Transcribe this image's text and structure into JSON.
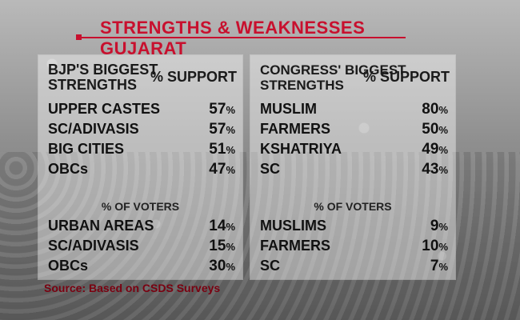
{
  "title": "STRENGTHS & WEAKNESSES GUJARAT",
  "colors": {
    "accent": "#c8102e",
    "source": "#7a0010"
  },
  "left": {
    "header": "BJP's BIGGEST\nSTRENGTHS",
    "support_label": "% SUPPORT",
    "support_rows": [
      {
        "label": "UPPER CASTES",
        "value": "57",
        "unit": "%"
      },
      {
        "label": "SC/ADIVASIS",
        "value": "57",
        "unit": "%"
      },
      {
        "label": "BIG CITIES",
        "value": "51",
        "unit": "%"
      },
      {
        "label": "OBCs",
        "value": "47",
        "unit": "%"
      }
    ],
    "voters_label": "% OF VOTERS",
    "voters_rows": [
      {
        "label": "URBAN AREAS",
        "value": "14",
        "unit": "%"
      },
      {
        "label": "SC/ADIVASIS",
        "value": "15",
        "unit": "%"
      },
      {
        "label": "OBCs",
        "value": "30",
        "unit": "%"
      }
    ]
  },
  "right": {
    "header": "CONGRESS' BIGGEST\nSTRENGTHS",
    "support_label": "% SUPPORT",
    "support_rows": [
      {
        "label": "MUSLIM",
        "value": "80",
        "unit": "%"
      },
      {
        "label": "FARMERS",
        "value": "50",
        "unit": "%"
      },
      {
        "label": "KSHATRIYA",
        "value": "49",
        "unit": "%"
      },
      {
        "label": "SC",
        "value": "43",
        "unit": "%"
      }
    ],
    "voters_label": "% OF VOTERS",
    "voters_rows": [
      {
        "label": "MUSLIMS",
        "value": "9",
        "unit": "%"
      },
      {
        "label": "FARMERS",
        "value": "10",
        "unit": "%"
      },
      {
        "label": "SC",
        "value": "7",
        "unit": "%"
      }
    ]
  },
  "source": "Source: Based on CSDS Surveys"
}
